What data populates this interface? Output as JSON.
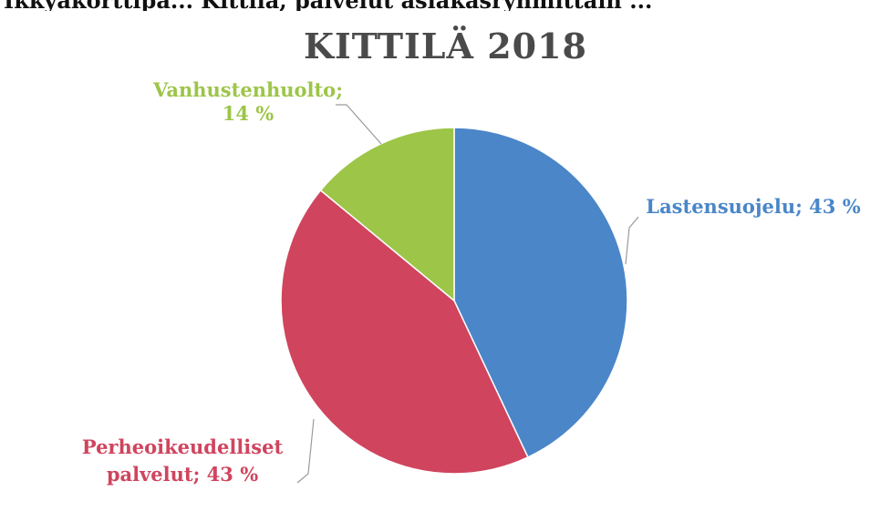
{
  "cut_off_heading": "Ikkyakorttipa... Kittilä, palvelut asiakasryhmittäin ...",
  "chart_data": {
    "type": "pie",
    "title": "KITTILÄ 2018",
    "slices": [
      {
        "label": "Lastensuojelu",
        "percent_text": "43 %",
        "value": 43,
        "color": "#4a86c8"
      },
      {
        "label": "Perheoikeudelliset palvelut",
        "percent_text": "43 %",
        "value": 43,
        "color": "#d0445e"
      },
      {
        "label": "Vanhustenhuolto",
        "percent_text": "14 %",
        "value": 14,
        "color": "#9dc548"
      }
    ],
    "legend": "none",
    "data_labels": "outside with leader lines"
  }
}
